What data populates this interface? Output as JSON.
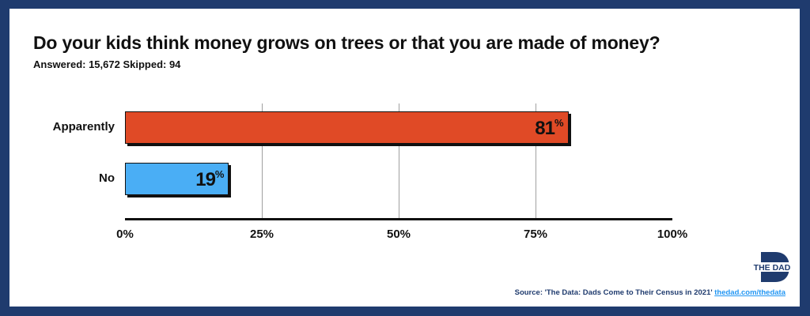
{
  "title": "Do your kids think money grows on trees or that you are made of money?",
  "subtitle": "Answered: 15,672 Skipped: 94",
  "colors": {
    "frame": "#1f3b6e",
    "apparently": "#e04a26",
    "no": "#4aaef5",
    "link": "#2196f3"
  },
  "chart_data": {
    "type": "bar",
    "orientation": "horizontal",
    "categories": [
      "Apparently",
      "No"
    ],
    "values": [
      81,
      19
    ],
    "value_labels": [
      "81",
      "19"
    ],
    "value_suffix": "%",
    "xlim": [
      0,
      100
    ],
    "x_ticks": [
      "0%",
      "25%",
      "50%",
      "75%",
      "100%"
    ],
    "grid": true
  },
  "logo": {
    "text": "THE DAD",
    "icon": "the-dad-logo"
  },
  "source": {
    "text": "Source: 'The Data: Dads Come to Their Census in 2021'",
    "link": "thedad.com/thedata"
  }
}
